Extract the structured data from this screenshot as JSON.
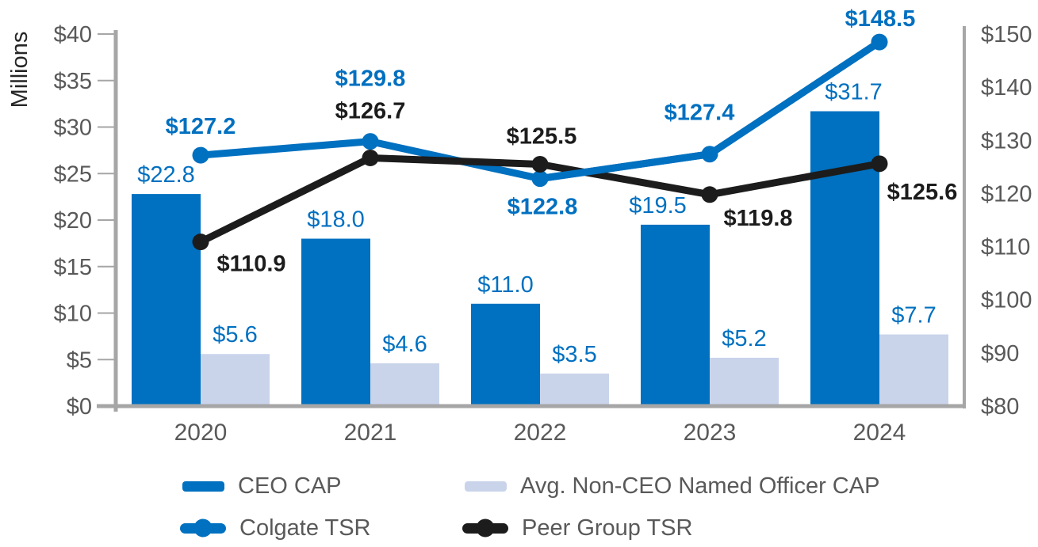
{
  "chart_data": {
    "type": "combo-bar-line",
    "title": "",
    "categories": [
      "2020",
      "2021",
      "2022",
      "2023",
      "2024"
    ],
    "left_axis": {
      "title": "Millions",
      "min": 0,
      "max": 40,
      "step": 5,
      "tick_labels": [
        "$0",
        "$5",
        "$10",
        "$15",
        "$20",
        "$25",
        "$30",
        "$35",
        "$40"
      ]
    },
    "right_axis": {
      "min": 80,
      "max": 150,
      "step": 10,
      "tick_labels": [
        "$80",
        "$90",
        "$100",
        "$110",
        "$120",
        "$130",
        "$140",
        "$150"
      ]
    },
    "series": [
      {
        "name": "CEO CAP",
        "type": "bar",
        "axis": "left",
        "color": "#0070C0",
        "values": [
          22.8,
          18.0,
          11.0,
          19.5,
          31.7
        ],
        "labels": [
          "$22.8",
          "$18.0",
          "$11.0",
          "$19.5",
          "$31.7"
        ],
        "label_color": "#0070C0"
      },
      {
        "name": "Avg. Non-CEO Named Officer CAP",
        "type": "bar",
        "axis": "left",
        "color": "#C9D4EB",
        "values": [
          5.6,
          4.6,
          3.5,
          5.2,
          7.7
        ],
        "labels": [
          "$5.6",
          "$4.6",
          "$3.5",
          "$5.2",
          "$7.7"
        ],
        "label_color": "#0070C0"
      },
      {
        "name": "Colgate TSR",
        "type": "line",
        "axis": "right",
        "color": "#0070C0",
        "values": [
          127.2,
          129.8,
          122.8,
          127.4,
          148.5
        ],
        "labels": [
          "$127.2",
          "$129.8",
          "$122.8",
          "$127.4",
          "$148.5"
        ],
        "label_color": "#0070C0"
      },
      {
        "name": "Peer Group TSR",
        "type": "line",
        "axis": "right",
        "color": "#1C1C1C",
        "values": [
          110.9,
          126.7,
          125.5,
          119.8,
          125.6
        ],
        "labels": [
          "$110.9",
          "$126.7",
          "$125.5",
          "$119.8",
          "$125.6"
        ],
        "label_color": "#1C1C1C"
      }
    ],
    "legend_position": "bottom",
    "grid": false,
    "style": {
      "axis_line_color": "#A6A6A6",
      "tick_text_color": "#595959",
      "axis_title_color": "#262626",
      "background": "#FFFFFF"
    }
  }
}
